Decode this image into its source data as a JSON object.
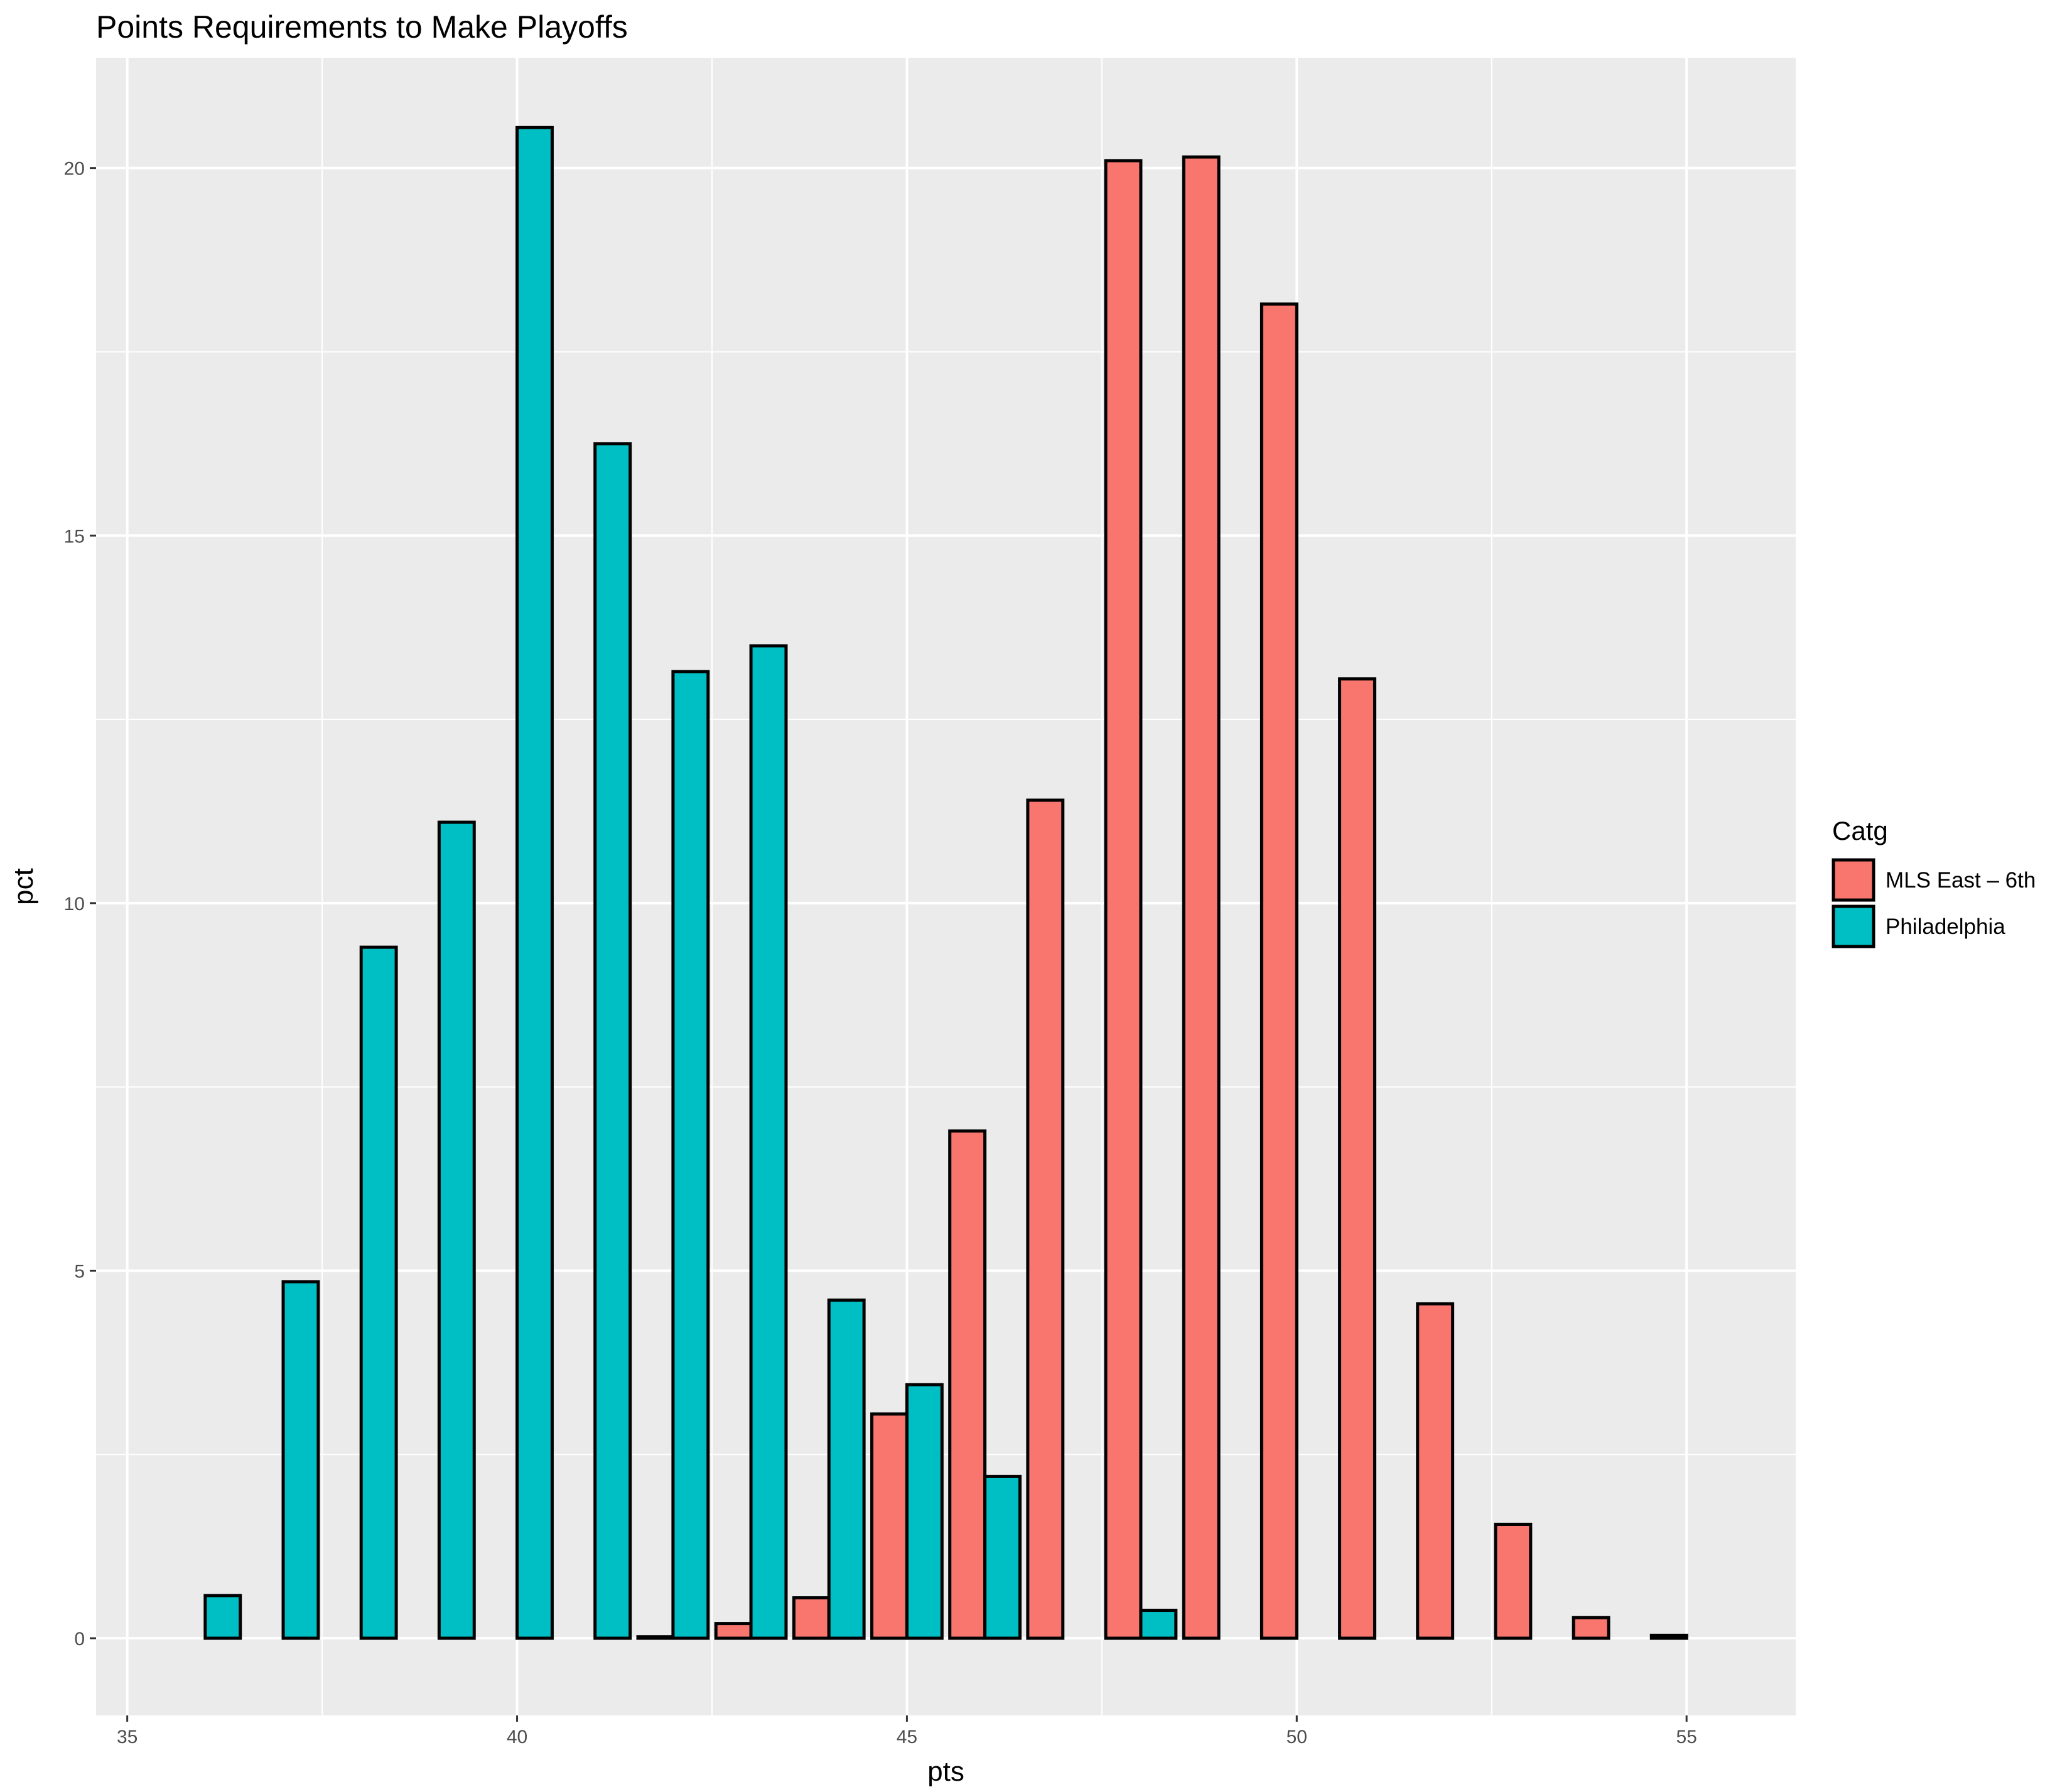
{
  "chart_data": {
    "type": "bar",
    "title": "Points Requirements to Make Playoffs",
    "xlabel": "pts",
    "ylabel": "pct",
    "xlim": [
      34.6,
      56.4
    ],
    "ylim": [
      -1.05,
      21.5
    ],
    "xticks": [
      35,
      40,
      45,
      50,
      55
    ],
    "yticks": [
      0,
      5,
      10,
      15,
      20
    ],
    "x_tick_labels": [
      "35",
      "40",
      "45",
      "50",
      "55"
    ],
    "y_tick_labels": [
      "0",
      "5",
      "10",
      "15",
      "20"
    ],
    "grid": true,
    "background": "#ebebeb",
    "legend": {
      "title": "Catg",
      "position": "right"
    },
    "x": [
      36,
      37,
      38,
      39,
      40,
      41,
      42,
      43,
      44,
      45,
      46,
      47,
      48,
      49,
      50,
      51,
      52,
      53,
      54,
      55
    ],
    "series": [
      {
        "name": "MLS East – 6th",
        "color": "#F8766D",
        "values": [
          0,
          0,
          0,
          0,
          0,
          0,
          0.02,
          0.2,
          0.55,
          3.05,
          6.9,
          11.4,
          20.1,
          20.15,
          18.15,
          13.05,
          4.55,
          1.55,
          0.28,
          0.04
        ]
      },
      {
        "name": "Philadelphia",
        "color": "#00BFC4",
        "values": [
          0.58,
          4.85,
          9.4,
          11.1,
          20.55,
          16.25,
          13.15,
          13.5,
          4.6,
          3.45,
          2.2,
          0,
          0.38,
          0,
          0,
          0,
          0,
          0,
          0,
          0
        ]
      }
    ]
  }
}
